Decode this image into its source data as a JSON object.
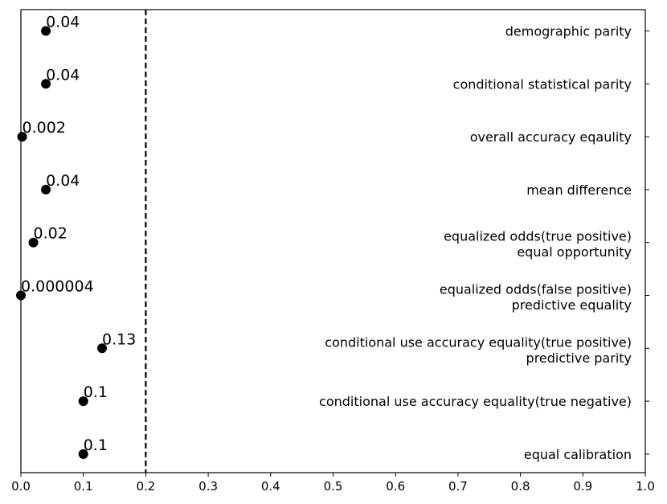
{
  "chart_data": {
    "type": "scatter",
    "title": "",
    "xlabel": "",
    "ylabel": "",
    "xlim": [
      0,
      1
    ],
    "x_ticks": [
      "0.0",
      "0.1",
      "0.2",
      "0.3",
      "0.4",
      "0.5",
      "0.6",
      "0.7",
      "0.8",
      "0.9",
      "1.0"
    ],
    "threshold": 0.2,
    "grid": false,
    "points": [
      {
        "label": "0.04",
        "value": 0.04,
        "metric": [
          "demographic parity"
        ]
      },
      {
        "label": "0.04",
        "value": 0.04,
        "metric": [
          "conditional statistical parity"
        ]
      },
      {
        "label": "0.002",
        "value": 0.002,
        "metric": [
          "overall accuracy eqaulity"
        ]
      },
      {
        "label": "0.04",
        "value": 0.04,
        "metric": [
          "mean difference"
        ]
      },
      {
        "label": "0.02",
        "value": 0.02,
        "metric": [
          "equalized odds(true positive)",
          "equal opportunity"
        ]
      },
      {
        "label": "0.000004",
        "value": 4e-06,
        "metric": [
          "equalized odds(false positive)",
          "predictive equality"
        ]
      },
      {
        "label": "0.13",
        "value": 0.13,
        "metric": [
          "conditional use accuracy equality(true positive)",
          "predictive parity"
        ]
      },
      {
        "label": "0.1",
        "value": 0.1,
        "metric": [
          "conditional use accuracy equality(true negative)"
        ]
      },
      {
        "label": "0.1",
        "value": 0.1,
        "metric": [
          "equal calibration"
        ]
      }
    ],
    "colors": {
      "marker": "#000000",
      "threshold_line": "#000000"
    }
  }
}
